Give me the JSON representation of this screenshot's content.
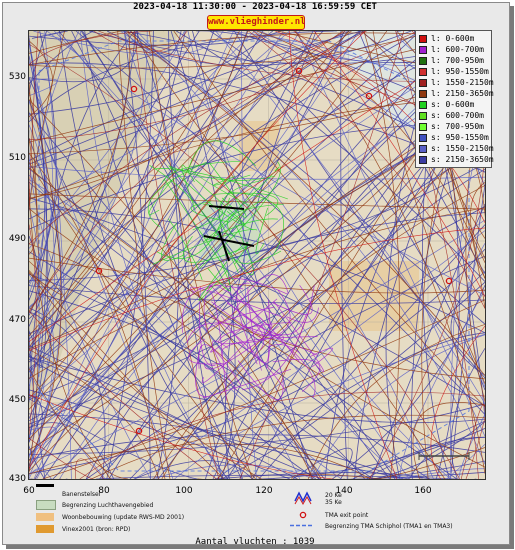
{
  "header": {
    "title": "2023-04-18 11:30:00 - 2023-04-18 16:59:59 CET",
    "site": "www.vlieghinder.nl"
  },
  "axes": {
    "y_ticks": [
      "530",
      "510",
      "490",
      "470",
      "450",
      "430"
    ],
    "x_ticks": [
      "60",
      "80",
      "100",
      "120",
      "140",
      "160"
    ]
  },
  "legend": [
    {
      "label": "l: 0-600m",
      "color": "#d01010"
    },
    {
      "label": "l: 600-700m",
      "color": "#a020d0"
    },
    {
      "label": "l: 700-950m",
      "color": "#207010"
    },
    {
      "label": "l: 950-1550m",
      "color": "#d03030"
    },
    {
      "label": "l: 1550-2150m",
      "color": "#a02020"
    },
    {
      "label": "l: 2150-3650m",
      "color": "#903810"
    },
    {
      "label": "s: 0-600m",
      "color": "#20d020"
    },
    {
      "label": "s: 600-700m",
      "color": "#60e020"
    },
    {
      "label": "s: 700-950m",
      "color": "#70ff30"
    },
    {
      "label": "s: 950-1550m",
      "color": "#4050c0"
    },
    {
      "label": "s: 1550-2150m",
      "color": "#5a60c8"
    },
    {
      "label": "s: 2150-3650m",
      "color": "#3a3aa0"
    }
  ],
  "bottom_legend": {
    "banenstelsel": "Banenstelsel",
    "begrenzing_luchthaven": "Begrenzing Luchthavengebied",
    "woonbebouwing": "Woonbebouwing (update RWS-MD 2001)",
    "vinex": "Vinex2001 (bron: RPD)",
    "kv20": "20 Ke",
    "kv35": "35 Ke",
    "tma_exit": "TMA exit point",
    "tma_begrenzing": "Begrenzing TMA Schiphol  (TMA1 en TMA3)"
  },
  "footer": {
    "count": "Aantal vluchten : 1039"
  }
}
